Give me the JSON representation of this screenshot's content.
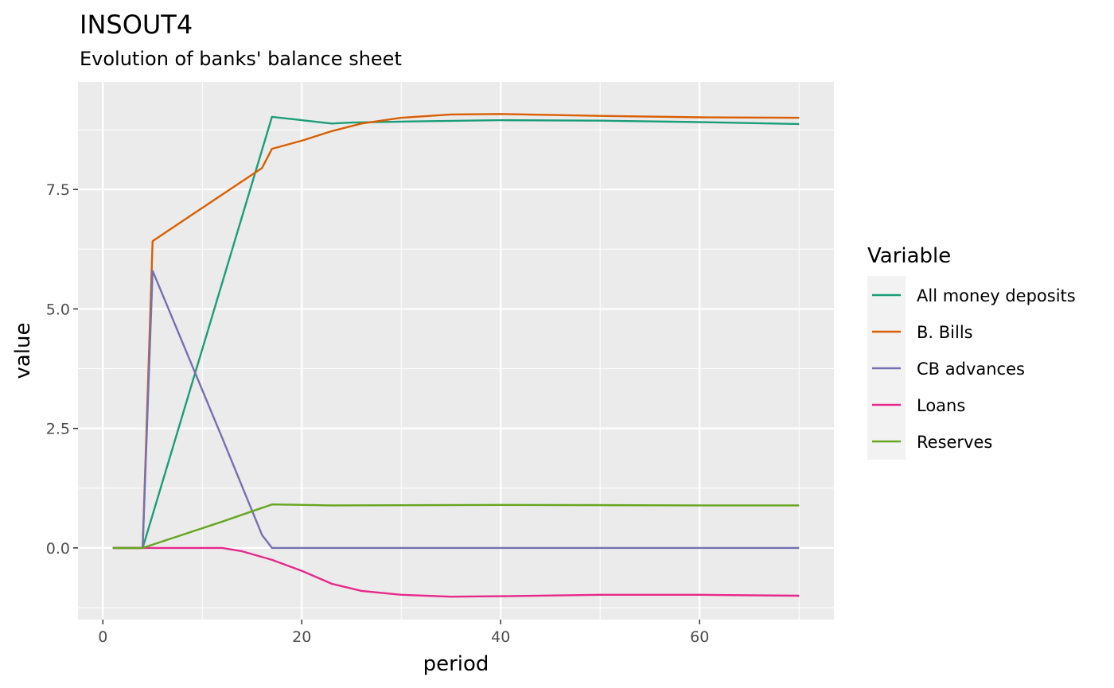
{
  "chart_data": {
    "type": "line",
    "title": "INSOUT4",
    "subtitle": "Evolution of banks' balance sheet",
    "xlabel": "period",
    "ylabel": "value",
    "xlim": [
      -2.5,
      73.5
    ],
    "ylim": [
      -1.5,
      9.75
    ],
    "x_ticks": [
      0,
      20,
      40,
      60
    ],
    "x_tick_labels": [
      "0",
      "20",
      "40",
      "60"
    ],
    "y_ticks": [
      0.0,
      2.5,
      5.0,
      7.5
    ],
    "y_tick_labels": [
      "0.0",
      "2.5",
      "5.0",
      "7.5"
    ],
    "grid": true,
    "legend_title": "Variable",
    "legend_position": "right",
    "series": [
      {
        "name": "All money deposits",
        "color": "#1b9e77",
        "x": [
          1,
          4,
          17,
          20,
          23,
          25,
          30,
          40,
          50,
          60,
          70
        ],
        "y": [
          0,
          0,
          9.02,
          8.95,
          8.88,
          8.9,
          8.92,
          8.95,
          8.94,
          8.91,
          8.87
        ]
      },
      {
        "name": "B. Bills",
        "color": "#d95f02",
        "x": [
          1,
          4,
          5,
          16,
          17,
          20,
          23,
          26,
          30,
          35,
          40,
          50,
          60,
          70
        ],
        "y": [
          0,
          0,
          6.42,
          7.95,
          8.35,
          8.52,
          8.72,
          8.88,
          9.0,
          9.07,
          9.08,
          9.04,
          9.01,
          9.0
        ]
      },
      {
        "name": "CB advances",
        "color": "#7570b3",
        "x": [
          1,
          4,
          5,
          12,
          16,
          17,
          20,
          70
        ],
        "y": [
          0,
          0,
          5.8,
          2.3,
          0.27,
          0,
          0,
          0
        ]
      },
      {
        "name": "Loans",
        "color": "#e7298a",
        "x": [
          1,
          4,
          12,
          14,
          17,
          20,
          23,
          26,
          30,
          35,
          40,
          50,
          60,
          70
        ],
        "y": [
          0,
          0,
          0,
          -0.07,
          -0.25,
          -0.48,
          -0.75,
          -0.9,
          -0.98,
          -1.02,
          -1.01,
          -0.98,
          -0.98,
          -1.0
        ]
      },
      {
        "name": "Reserves",
        "color": "#66a61e",
        "x": [
          1,
          4,
          12,
          17,
          23,
          40,
          60,
          70
        ],
        "y": [
          0,
          0,
          0.55,
          0.91,
          0.89,
          0.9,
          0.89,
          0.89
        ]
      }
    ]
  }
}
